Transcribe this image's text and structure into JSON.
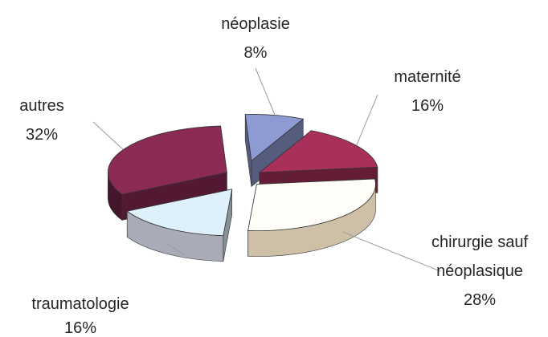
{
  "chart_data": {
    "type": "pie",
    "style": "3d-exploded",
    "slices": [
      {
        "label": "néoplasie",
        "percent_label": "8%",
        "value": 8,
        "color": "#8e9ad2"
      },
      {
        "label": "maternité",
        "percent_label": "16%",
        "value": 16,
        "color": "#a8305a"
      },
      {
        "label_lines": [
          "chirurgie sauf",
          "néoplasique"
        ],
        "percent_label": "28%",
        "value": 28,
        "color": "#fffdf7"
      },
      {
        "label": "traumatologie",
        "percent_label": "16%",
        "value": 16,
        "color": "#ddf0fb"
      },
      {
        "label": "autres",
        "percent_label": "32%",
        "value": 32,
        "color": "#8a2a55"
      }
    ]
  }
}
